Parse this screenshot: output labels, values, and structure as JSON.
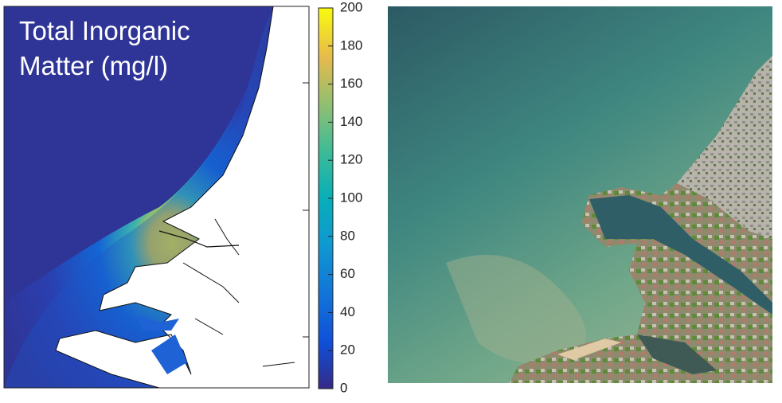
{
  "map": {
    "title_lines": [
      "Total Inorganic",
      "Matter (mg/l)"
    ],
    "colorbar": {
      "lim": [
        0,
        200
      ],
      "ticks": [
        0,
        20,
        40,
        60,
        80,
        100,
        120,
        140,
        160,
        180,
        200
      ]
    }
  }
}
